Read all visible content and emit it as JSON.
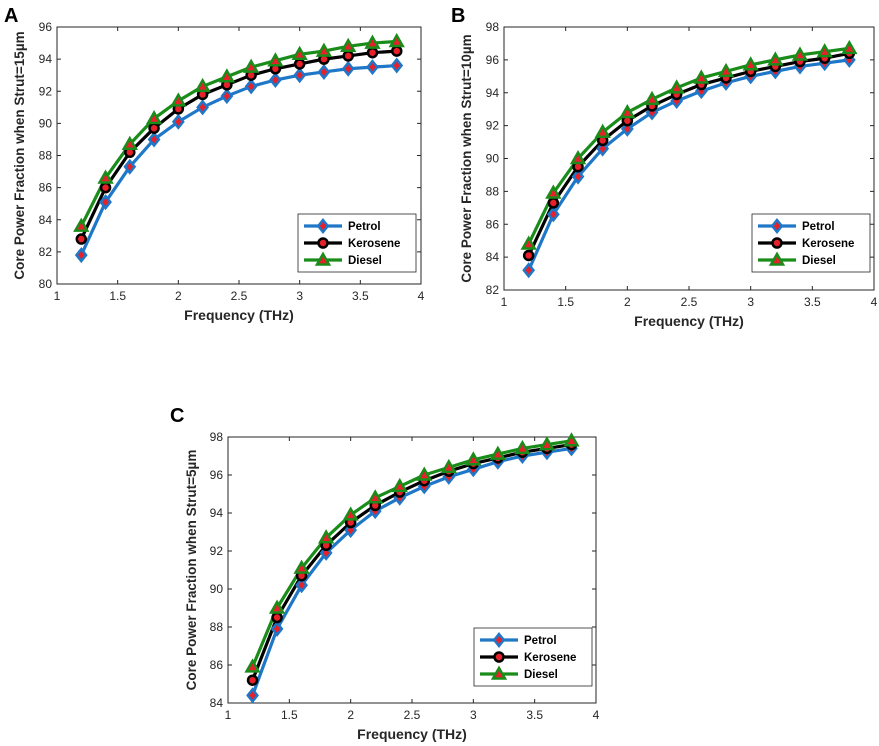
{
  "figure": {
    "series_styles": [
      {
        "name": "Petrol",
        "line": "#1f77c8",
        "marker": "diamond",
        "marker_fill": "#e8202a",
        "marker_edge": "#1f77c8"
      },
      {
        "name": "Kerosene",
        "line": "#000000",
        "marker": "circle",
        "marker_fill": "#e8202a",
        "marker_edge": "#000000"
      },
      {
        "name": "Diesel",
        "line": "#1a8c1a",
        "marker": "triangle",
        "marker_fill": "#e8202a",
        "marker_edge": "#1a8c1a"
      }
    ]
  },
  "chart_data": [
    {
      "panel_label": "A",
      "type": "line",
      "title": "",
      "xlabel": "Frequency (THz)",
      "ylabel": "Core Power Fraction when Strut=15µm",
      "xlim": [
        1,
        4
      ],
      "ylim": [
        80,
        96
      ],
      "xticks": [
        1,
        1.5,
        2,
        2.5,
        3,
        3.5,
        4
      ],
      "xtick_labels": [
        "1",
        "1.5",
        "2",
        "2.5",
        "3",
        "3.5",
        "4"
      ],
      "yticks": [
        80,
        82,
        84,
        86,
        88,
        90,
        92,
        94,
        96
      ],
      "ytick_labels": [
        "80",
        "82",
        "84",
        "86",
        "88",
        "90",
        "92",
        "94",
        "96"
      ],
      "legend_position": "lower-right",
      "x": [
        1.2,
        1.4,
        1.6,
        1.8,
        2.0,
        2.2,
        2.4,
        2.6,
        2.8,
        3.0,
        3.2,
        3.4,
        3.6,
        3.8
      ],
      "series": [
        {
          "name": "Petrol",
          "values": [
            81.8,
            85.1,
            87.3,
            89.0,
            90.1,
            91.0,
            91.7,
            92.3,
            92.7,
            93.0,
            93.2,
            93.4,
            93.5,
            93.6
          ]
        },
        {
          "name": "Kerosene",
          "values": [
            82.8,
            86.0,
            88.2,
            89.7,
            90.9,
            91.8,
            92.4,
            93.0,
            93.4,
            93.7,
            94.0,
            94.2,
            94.4,
            94.5
          ]
        },
        {
          "name": "Diesel",
          "values": [
            83.6,
            86.6,
            88.7,
            90.3,
            91.4,
            92.3,
            92.9,
            93.5,
            93.9,
            94.3,
            94.5,
            94.8,
            95.0,
            95.1
          ]
        }
      ]
    },
    {
      "panel_label": "B",
      "type": "line",
      "title": "",
      "xlabel": "Frequency (THz)",
      "ylabel": "Core Power Fraction when Strut=10µm",
      "xlim": [
        1,
        4
      ],
      "ylim": [
        82,
        98
      ],
      "xticks": [
        1,
        1.5,
        2,
        2.5,
        3,
        3.5,
        4
      ],
      "xtick_labels": [
        "1",
        "1.5",
        "2",
        "2.5",
        "3",
        "3.5",
        "4"
      ],
      "yticks": [
        82,
        84,
        86,
        88,
        90,
        92,
        94,
        96,
        98
      ],
      "ytick_labels": [
        "82",
        "84",
        "86",
        "88",
        "90",
        "92",
        "94",
        "96",
        "98"
      ],
      "legend_position": "lower-right",
      "x": [
        1.2,
        1.4,
        1.6,
        1.8,
        2.0,
        2.2,
        2.4,
        2.6,
        2.8,
        3.0,
        3.2,
        3.4,
        3.6,
        3.8
      ],
      "series": [
        {
          "name": "Petrol",
          "values": [
            83.2,
            86.6,
            88.9,
            90.6,
            91.8,
            92.8,
            93.5,
            94.1,
            94.6,
            95.0,
            95.3,
            95.6,
            95.8,
            96.0
          ]
        },
        {
          "name": "Kerosene",
          "values": [
            84.1,
            87.3,
            89.5,
            91.1,
            92.3,
            93.2,
            93.9,
            94.5,
            94.9,
            95.3,
            95.6,
            95.9,
            96.1,
            96.4
          ]
        },
        {
          "name": "Diesel",
          "values": [
            84.8,
            87.9,
            90.0,
            91.6,
            92.8,
            93.6,
            94.3,
            94.9,
            95.3,
            95.7,
            96.0,
            96.3,
            96.5,
            96.7
          ]
        }
      ]
    },
    {
      "panel_label": "C",
      "type": "line",
      "title": "",
      "xlabel": "Frequency (THz)",
      "ylabel": "Core Power Fraction when Strut=5µm",
      "xlim": [
        1,
        4
      ],
      "ylim": [
        84,
        98
      ],
      "xticks": [
        1,
        1.5,
        2,
        2.5,
        3,
        3.5,
        4
      ],
      "xtick_labels": [
        "1",
        "1.5",
        "2",
        "2.5",
        "3",
        "3.5",
        "4"
      ],
      "yticks": [
        84,
        86,
        88,
        90,
        92,
        94,
        96,
        98
      ],
      "ytick_labels": [
        "84",
        "86",
        "88",
        "90",
        "92",
        "94",
        "96",
        "98"
      ],
      "legend_position": "lower-right",
      "x": [
        1.2,
        1.4,
        1.6,
        1.8,
        2.0,
        2.2,
        2.4,
        2.6,
        2.8,
        3.0,
        3.2,
        3.4,
        3.6,
        3.8
      ],
      "series": [
        {
          "name": "Petrol",
          "values": [
            84.4,
            87.9,
            90.2,
            91.9,
            93.1,
            94.1,
            94.8,
            95.4,
            95.9,
            96.3,
            96.7,
            97.0,
            97.2,
            97.4
          ]
        },
        {
          "name": "Kerosene",
          "values": [
            85.2,
            88.5,
            90.7,
            92.3,
            93.5,
            94.4,
            95.1,
            95.7,
            96.2,
            96.6,
            96.9,
            97.2,
            97.4,
            97.6
          ]
        },
        {
          "name": "Diesel",
          "values": [
            85.9,
            89.0,
            91.1,
            92.7,
            93.9,
            94.8,
            95.4,
            96.0,
            96.4,
            96.8,
            97.1,
            97.4,
            97.6,
            97.8
          ]
        }
      ]
    }
  ]
}
